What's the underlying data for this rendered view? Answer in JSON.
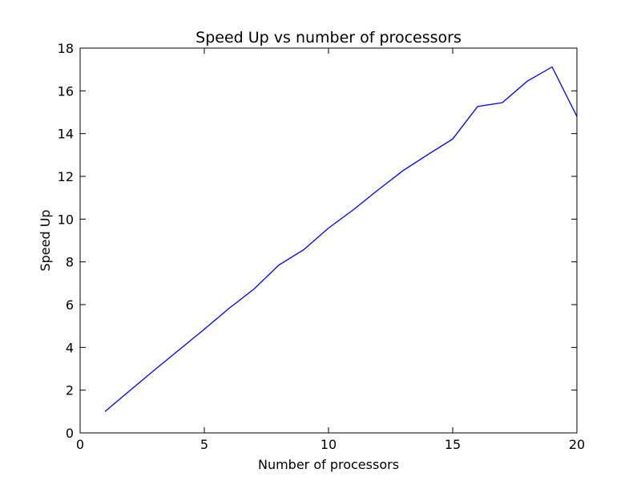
{
  "chart_data": {
    "type": "line",
    "title": "Speed Up vs number of processors",
    "xlabel": "Number of processors",
    "ylabel": "Speed Up",
    "xlim": [
      0,
      20
    ],
    "ylim": [
      0,
      18
    ],
    "xticks": [
      0,
      5,
      10,
      15,
      20
    ],
    "yticks": [
      0,
      2,
      4,
      6,
      8,
      10,
      12,
      14,
      16,
      18
    ],
    "grid": false,
    "legend": "none",
    "series": [
      {
        "color": "#0000ff",
        "x": [
          1,
          2,
          3,
          4,
          5,
          6,
          7,
          8,
          9,
          10,
          11,
          12,
          13,
          14,
          15,
          16,
          17,
          18,
          19,
          20
        ],
        "y": [
          1.0,
          1.98,
          2.95,
          3.9,
          4.85,
          5.83,
          6.73,
          7.85,
          8.57,
          9.58,
          10.44,
          11.37,
          12.27,
          13.02,
          13.75,
          15.27,
          15.45,
          16.45,
          17.12,
          14.8
        ]
      }
    ]
  }
}
